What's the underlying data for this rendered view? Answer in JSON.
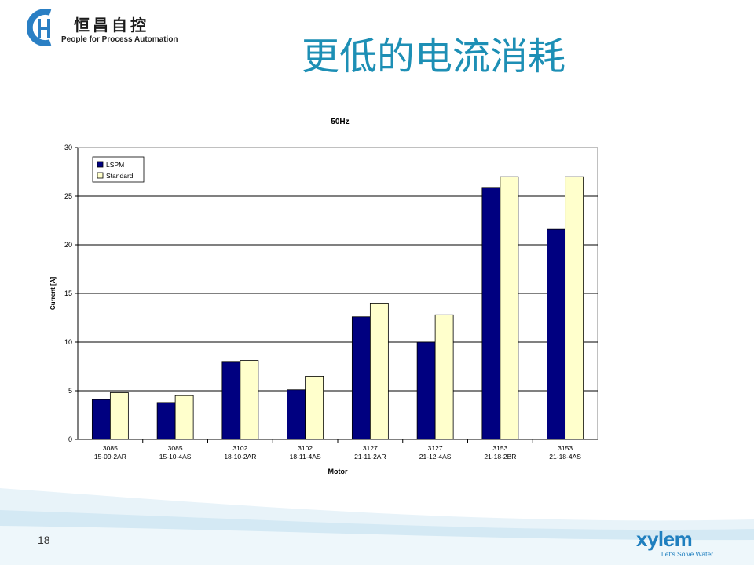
{
  "header": {
    "logo_cn": "恒昌自控",
    "logo_en": "People for Process Automation",
    "title": "更低的电流消耗"
  },
  "footer": {
    "page_number": "18",
    "brand": "xylem",
    "tagline": "Let's Solve Water"
  },
  "colors": {
    "title": "#1d8fb5",
    "lspm": "#000080",
    "standard": "#ffffcc",
    "brand": "#1f7fbf"
  },
  "chart_data": {
    "type": "bar",
    "title": "50Hz",
    "xlabel": "Motor",
    "ylabel": "Current [A]",
    "ylim": [
      0,
      30
    ],
    "yticks": [
      0,
      5,
      10,
      15,
      20,
      25,
      30
    ],
    "grid": true,
    "legend": "top-left",
    "categories": [
      [
        "3085",
        "15-09-2AR"
      ],
      [
        "3085",
        "15-10-4AS"
      ],
      [
        "3102",
        "18-10-2AR"
      ],
      [
        "3102",
        "18-11-4AS"
      ],
      [
        "3127",
        "21-11-2AR"
      ],
      [
        "3127",
        "21-12-4AS"
      ],
      [
        "3153",
        "21-18-2BR"
      ],
      [
        "3153",
        "21-18-4AS"
      ]
    ],
    "series": [
      {
        "name": "LSPM",
        "color": "#000080",
        "values": [
          4.1,
          3.8,
          8.0,
          5.1,
          12.6,
          10.0,
          25.9,
          21.6
        ]
      },
      {
        "name": "Standard",
        "color": "#ffffcc",
        "values": [
          4.8,
          4.5,
          8.1,
          6.5,
          14.0,
          12.8,
          27.0,
          27.0
        ]
      }
    ]
  }
}
